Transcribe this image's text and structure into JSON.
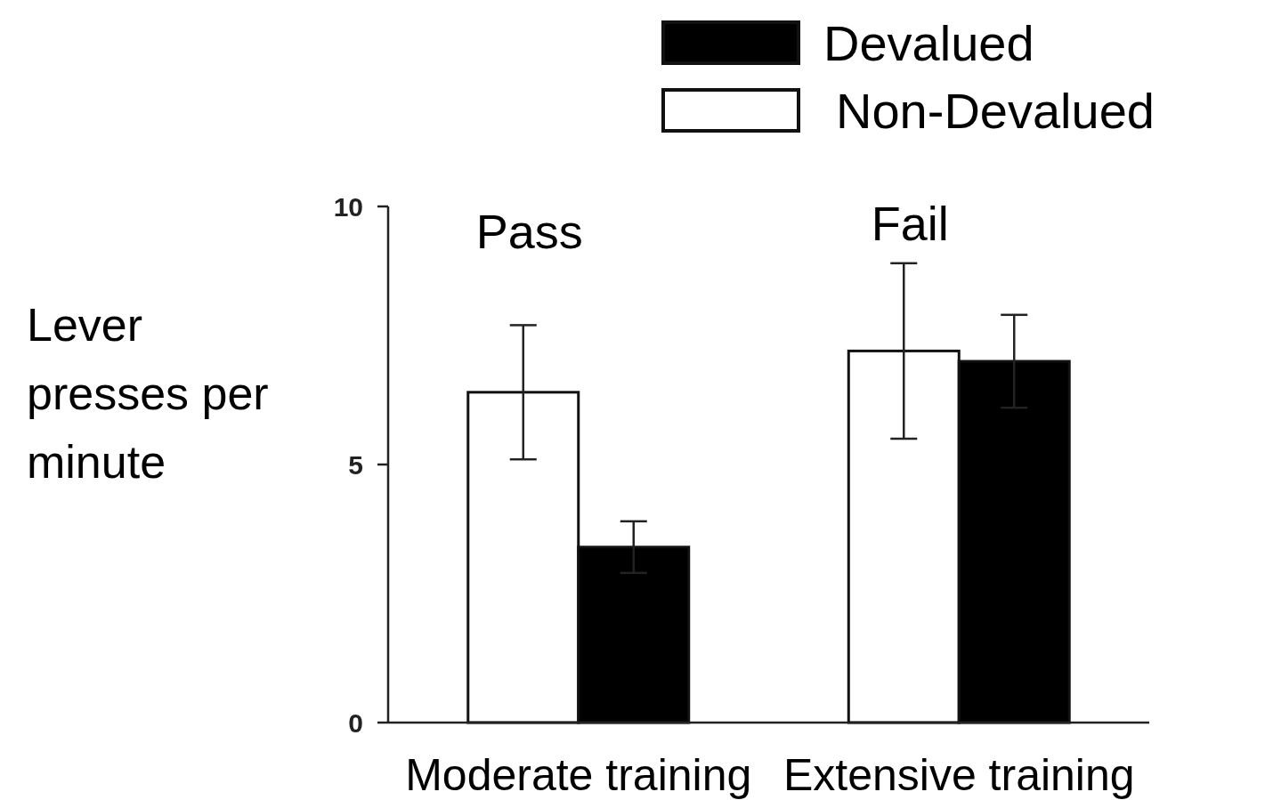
{
  "chart_data": {
    "type": "bar",
    "ylabel": "Lever\npresses per\nminute",
    "categories": [
      "Moderate training",
      "Extensive training"
    ],
    "series": [
      {
        "name": "Non-Devalued",
        "color": "#ffffff",
        "values": [
          6.4,
          7.2
        ],
        "errors": [
          1.3,
          1.7
        ]
      },
      {
        "name": "Devalued",
        "color": "#000000",
        "values": [
          3.4,
          7.0
        ],
        "errors": [
          0.5,
          0.9
        ]
      }
    ],
    "ylim": [
      0,
      10
    ],
    "yticks": [
      0,
      5,
      10
    ],
    "legend": "top right",
    "grid": false,
    "annotations": [
      "Pass",
      "Fail"
    ]
  }
}
